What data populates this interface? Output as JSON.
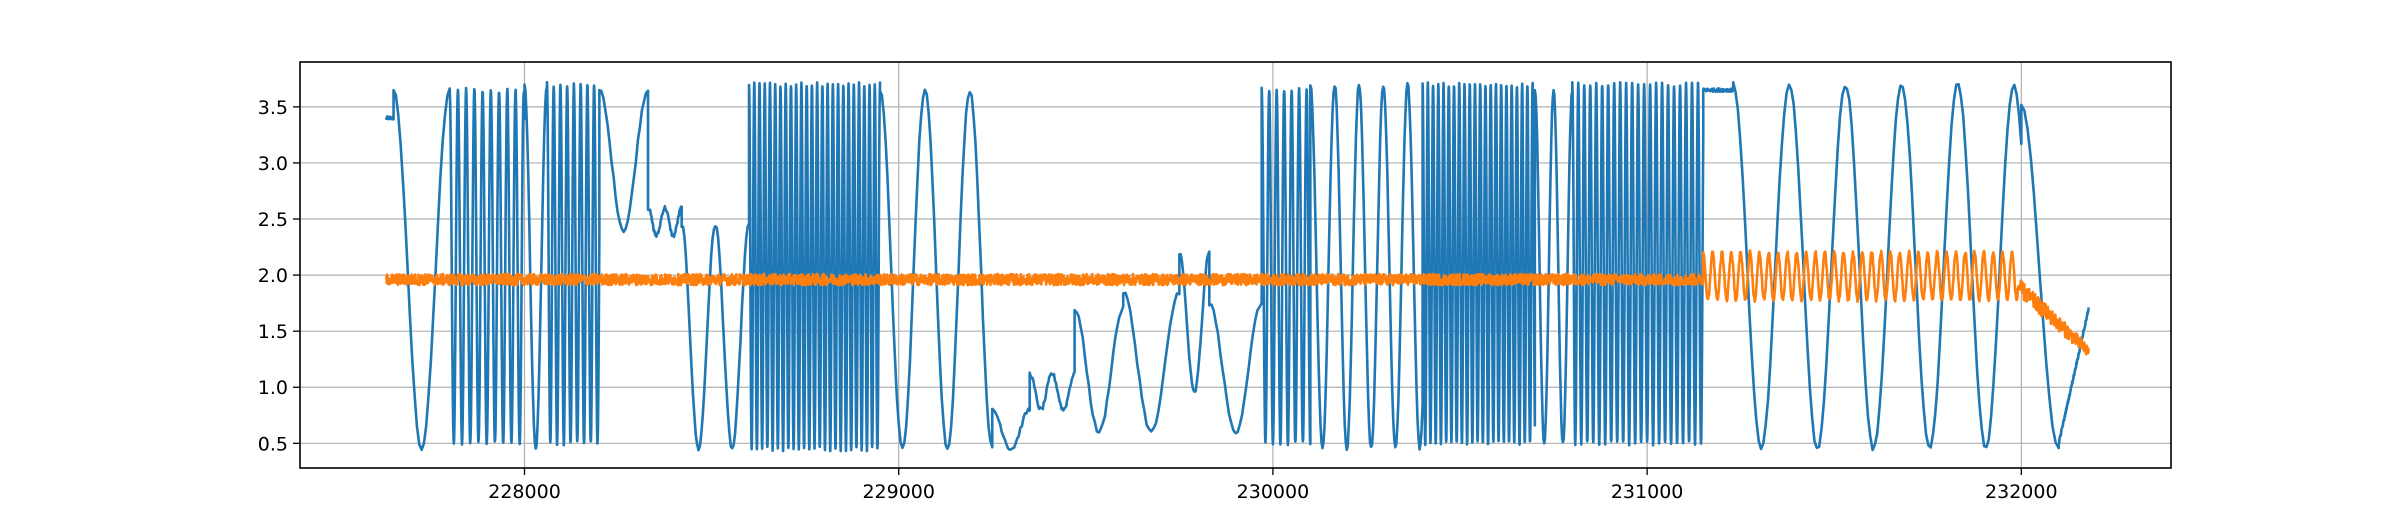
{
  "chart_data": {
    "type": "line",
    "title": "",
    "xlabel": "",
    "ylabel": "",
    "xlim": [
      227400,
      232400
    ],
    "ylim": [
      0.28,
      3.9
    ],
    "grid": true,
    "legend": "none",
    "x_ticks": [
      {
        "value": 228000,
        "label": "228000"
      },
      {
        "value": 229000,
        "label": "229000"
      },
      {
        "value": 230000,
        "label": "230000"
      },
      {
        "value": 231000,
        "label": "231000"
      },
      {
        "value": 232000,
        "label": "232000"
      }
    ],
    "y_ticks": [
      {
        "value": 0.5,
        "label": "0.5"
      },
      {
        "value": 1.0,
        "label": "1.0"
      },
      {
        "value": 1.5,
        "label": "1.5"
      },
      {
        "value": 2.0,
        "label": "2.0"
      },
      {
        "value": 2.5,
        "label": "2.5"
      },
      {
        "value": 3.0,
        "label": "3.0"
      },
      {
        "value": 3.5,
        "label": "3.5"
      }
    ],
    "series": [
      {
        "color": "#1f77b4",
        "x_range": [
          227630,
          232180
        ],
        "segments": [
          {
            "x0": 227630,
            "x1": 227650,
            "kind": "const",
            "value": 3.4
          },
          {
            "x0": 227650,
            "x1": 227800,
            "kind": "osc",
            "period": 150,
            "min": 0.45,
            "max": 3.65
          },
          {
            "x0": 227800,
            "x1": 228000,
            "kind": "osc",
            "period": 22,
            "min": 0.5,
            "max": 3.65
          },
          {
            "x0": 228000,
            "x1": 228060,
            "kind": "osc",
            "period": 60,
            "min": 0.45,
            "max": 3.7
          },
          {
            "x0": 228060,
            "x1": 228200,
            "kind": "osc",
            "period": 18,
            "min": 0.5,
            "max": 3.7
          },
          {
            "x0": 228200,
            "x1": 228330,
            "kind": "osc",
            "period": 130,
            "min": 2.4,
            "max": 3.65
          },
          {
            "x0": 228330,
            "x1": 228420,
            "kind": "osc",
            "period": 45,
            "min": 2.35,
            "max": 2.6
          },
          {
            "x0": 228420,
            "x1": 228600,
            "kind": "osc",
            "period": 90,
            "min": 0.45,
            "max": 2.45
          },
          {
            "x0": 228600,
            "x1": 228950,
            "kind": "osc",
            "period": 14,
            "min": 0.45,
            "max": 3.7
          },
          {
            "x0": 228950,
            "x1": 229250,
            "kind": "osc",
            "period": 120,
            "min": 0.45,
            "max": 3.65
          },
          {
            "x0": 229250,
            "x1": 229350,
            "kind": "osc",
            "period": 100,
            "min": 0.45,
            "max": 0.8
          },
          {
            "x0": 229350,
            "x1": 229470,
            "kind": "osc",
            "period": 60,
            "min": 0.8,
            "max": 1.12
          },
          {
            "x0": 229470,
            "x1": 229600,
            "kind": "osc",
            "period": 130,
            "min": 0.6,
            "max": 1.7
          },
          {
            "x0": 229600,
            "x1": 229750,
            "kind": "osc",
            "period": 150,
            "min": 0.6,
            "max": 1.85
          },
          {
            "x0": 229750,
            "x1": 229830,
            "kind": "osc",
            "period": 80,
            "min": 0.95,
            "max": 2.2
          },
          {
            "x0": 229830,
            "x1": 229970,
            "kind": "osc",
            "period": 140,
            "min": 0.6,
            "max": 1.75
          },
          {
            "x0": 229970,
            "x1": 230100,
            "kind": "osc",
            "period": 20,
            "min": 0.5,
            "max": 3.65
          },
          {
            "x0": 230100,
            "x1": 230400,
            "kind": "osc",
            "period": 65,
            "min": 0.45,
            "max": 3.7
          },
          {
            "x0": 230400,
            "x1": 230700,
            "kind": "osc",
            "period": 14,
            "min": 0.5,
            "max": 3.7
          },
          {
            "x0": 230700,
            "x1": 230800,
            "kind": "osc",
            "period": 50,
            "min": 0.5,
            "max": 3.65
          },
          {
            "x0": 230800,
            "x1": 231150,
            "kind": "osc",
            "period": 16,
            "min": 0.5,
            "max": 3.7
          },
          {
            "x0": 231150,
            "x1": 231230,
            "kind": "const",
            "value": 3.65
          },
          {
            "x0": 231230,
            "x1": 232000,
            "kind": "osc",
            "period": 150,
            "min": 0.45,
            "max": 3.7
          },
          {
            "x0": 232000,
            "x1": 232100,
            "kind": "osc",
            "period": 200,
            "min": 0.45,
            "max": 3.5
          },
          {
            "x0": 232100,
            "x1": 232180,
            "kind": "ramp",
            "v0": 0.5,
            "v1": 1.7
          }
        ]
      },
      {
        "color": "#ff7f0e",
        "x_range": [
          227630,
          232180
        ],
        "segments": [
          {
            "x0": 227630,
            "x1": 231150,
            "kind": "noise",
            "center": 1.96,
            "amp": 0.05
          },
          {
            "x0": 231150,
            "x1": 231990,
            "kind": "osc",
            "period": 25,
            "min": 1.78,
            "max": 2.2
          },
          {
            "x0": 231990,
            "x1": 232180,
            "kind": "decay",
            "v0": 1.9,
            "v1": 1.32,
            "amp": 0.08
          }
        ]
      }
    ]
  }
}
